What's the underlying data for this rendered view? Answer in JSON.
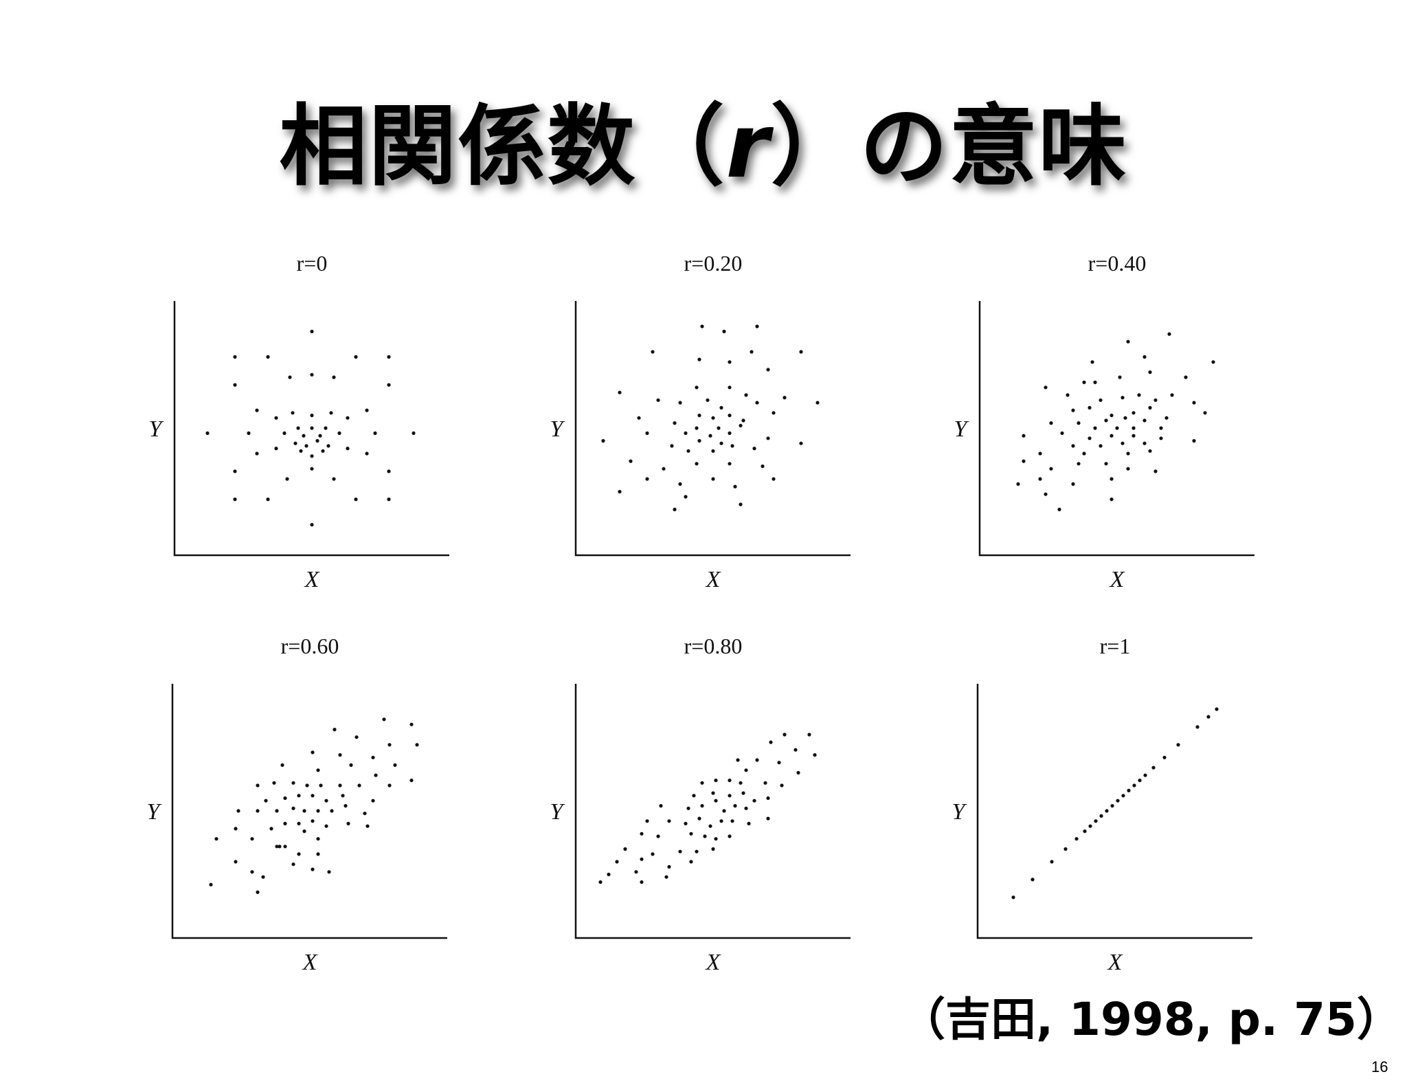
{
  "slide": {
    "title_prefix": "相関係数（",
    "title_symbol": "r",
    "title_suffix": "）の意味",
    "citation": "（吉田, 1998, p. 75）",
    "page_number": "16"
  },
  "chart_data": [
    {
      "type": "scatter",
      "title": "r=0",
      "xlabel": "X",
      "ylabel": "Y",
      "xlim": [
        0,
        10
      ],
      "ylim": [
        0,
        10
      ],
      "grid": false,
      "points": [
        [
          5,
          8.8
        ],
        [
          2.2,
          7.8
        ],
        [
          3.4,
          7.8
        ],
        [
          6.6,
          7.8
        ],
        [
          7.8,
          7.8
        ],
        [
          2.2,
          6.7
        ],
        [
          4.2,
          7.0
        ],
        [
          5,
          7.1
        ],
        [
          5.8,
          7.0
        ],
        [
          7.8,
          6.7
        ],
        [
          3,
          5.7
        ],
        [
          3.7,
          5.4
        ],
        [
          4.3,
          5.6
        ],
        [
          5,
          5.5
        ],
        [
          5.7,
          5.6
        ],
        [
          6.3,
          5.4
        ],
        [
          7,
          5.7
        ],
        [
          1.2,
          4.8
        ],
        [
          2.7,
          4.8
        ],
        [
          4,
          4.8
        ],
        [
          4.5,
          5.0
        ],
        [
          4.7,
          4.7
        ],
        [
          5,
          5.0
        ],
        [
          5.3,
          4.7
        ],
        [
          5.5,
          5.0
        ],
        [
          6,
          4.8
        ],
        [
          7.3,
          4.8
        ],
        [
          8.7,
          4.8
        ],
        [
          4.4,
          4.4
        ],
        [
          4.8,
          4.3
        ],
        [
          5.2,
          4.5
        ],
        [
          5.6,
          4.3
        ],
        [
          4.6,
          4.1
        ],
        [
          5.4,
          4.1
        ],
        [
          3,
          4.0
        ],
        [
          3.7,
          4.2
        ],
        [
          6.3,
          4.2
        ],
        [
          7,
          4.0
        ],
        [
          5,
          3.9
        ],
        [
          2.2,
          3.3
        ],
        [
          4.1,
          3.0
        ],
        [
          5,
          3.4
        ],
        [
          5.8,
          3.0
        ],
        [
          7.8,
          3.3
        ],
        [
          2.2,
          2.2
        ],
        [
          3.4,
          2.2
        ],
        [
          6.6,
          2.2
        ],
        [
          7.8,
          2.2
        ],
        [
          5,
          1.2
        ]
      ]
    },
    {
      "type": "scatter",
      "title": "r=0.20",
      "xlabel": "X",
      "ylabel": "Y",
      "xlim": [
        0,
        10
      ],
      "ylim": [
        0,
        10
      ],
      "grid": false,
      "points": [
        [
          4.6,
          9.0
        ],
        [
          5.4,
          8.8
        ],
        [
          6.6,
          9.0
        ],
        [
          2.8,
          8.0
        ],
        [
          4.5,
          7.7
        ],
        [
          5.6,
          7.6
        ],
        [
          6.4,
          8.0
        ],
        [
          8.2,
          8.0
        ],
        [
          7.0,
          7.3
        ],
        [
          1.6,
          6.4
        ],
        [
          3.0,
          6.1
        ],
        [
          4.4,
          6.6
        ],
        [
          5.6,
          6.6
        ],
        [
          6.2,
          6.3
        ],
        [
          7.6,
          6.2
        ],
        [
          8.8,
          6.0
        ],
        [
          3.8,
          6.0
        ],
        [
          4.8,
          6.1
        ],
        [
          5.3,
          5.8
        ],
        [
          6.6,
          6.0
        ],
        [
          2.3,
          5.4
        ],
        [
          3.6,
          5.2
        ],
        [
          4.5,
          5.5
        ],
        [
          5.0,
          5.4
        ],
        [
          5.6,
          5.5
        ],
        [
          6.1,
          5.3
        ],
        [
          7.2,
          5.6
        ],
        [
          1.0,
          4.5
        ],
        [
          2.6,
          4.8
        ],
        [
          4.0,
          4.8
        ],
        [
          4.4,
          5.0
        ],
        [
          4.9,
          4.7
        ],
        [
          5.2,
          5.0
        ],
        [
          5.6,
          4.8
        ],
        [
          6.0,
          5.1
        ],
        [
          8.2,
          4.4
        ],
        [
          4.5,
          4.5
        ],
        [
          5.3,
          4.4
        ],
        [
          5.7,
          4.3
        ],
        [
          7.0,
          4.6
        ],
        [
          3.5,
          4.3
        ],
        [
          4.1,
          4.1
        ],
        [
          5.0,
          4.1
        ],
        [
          6.5,
          4.2
        ],
        [
          2.0,
          3.7
        ],
        [
          3.2,
          3.4
        ],
        [
          4.4,
          3.6
        ],
        [
          5.6,
          3.6
        ],
        [
          6.8,
          3.5
        ],
        [
          2.6,
          3.0
        ],
        [
          3.8,
          2.8
        ],
        [
          5.0,
          3.0
        ],
        [
          5.8,
          2.7
        ],
        [
          7.2,
          3.0
        ],
        [
          1.6,
          2.5
        ],
        [
          4.0,
          2.3
        ],
        [
          6.0,
          2.0
        ],
        [
          3.6,
          1.8
        ]
      ]
    },
    {
      "type": "scatter",
      "title": "r=0.40",
      "xlabel": "X",
      "ylabel": "Y",
      "xlim": [
        0,
        10
      ],
      "ylim": [
        0,
        10
      ],
      "grid": false,
      "points": [
        [
          5.4,
          8.4
        ],
        [
          6.9,
          8.7
        ],
        [
          6.0,
          7.8
        ],
        [
          4.1,
          7.6
        ],
        [
          8.5,
          7.6
        ],
        [
          6.2,
          7.2
        ],
        [
          7.5,
          7.0
        ],
        [
          3.8,
          6.8
        ],
        [
          5.1,
          7.0
        ],
        [
          4.2,
          6.8
        ],
        [
          2.4,
          6.6
        ],
        [
          3.2,
          6.3
        ],
        [
          4.4,
          6.1
        ],
        [
          5.2,
          6.2
        ],
        [
          5.8,
          6.3
        ],
        [
          6.4,
          6.1
        ],
        [
          7.0,
          6.3
        ],
        [
          7.8,
          6.0
        ],
        [
          3.4,
          5.7
        ],
        [
          4.0,
          5.8
        ],
        [
          4.8,
          5.5
        ],
        [
          5.6,
          5.6
        ],
        [
          6.2,
          5.8
        ],
        [
          6.8,
          5.4
        ],
        [
          8.2,
          5.6
        ],
        [
          2.6,
          5.2
        ],
        [
          3.6,
          5.2
        ],
        [
          4.2,
          5.0
        ],
        [
          4.6,
          5.3
        ],
        [
          5.0,
          5.0
        ],
        [
          5.3,
          5.4
        ],
        [
          5.6,
          5.0
        ],
        [
          6.0,
          5.3
        ],
        [
          6.6,
          5.0
        ],
        [
          1.6,
          4.7
        ],
        [
          3.0,
          4.8
        ],
        [
          4.0,
          4.6
        ],
        [
          4.4,
          4.3
        ],
        [
          4.8,
          4.7
        ],
        [
          5.2,
          4.4
        ],
        [
          5.6,
          4.7
        ],
        [
          6.0,
          4.4
        ],
        [
          6.6,
          4.6
        ],
        [
          7.8,
          4.5
        ],
        [
          3.4,
          4.3
        ],
        [
          3.8,
          4.0
        ],
        [
          5.4,
          4.0
        ],
        [
          6.2,
          4.1
        ],
        [
          2.2,
          4.0
        ],
        [
          1.6,
          3.7
        ],
        [
          2.6,
          3.4
        ],
        [
          3.6,
          3.6
        ],
        [
          4.6,
          3.6
        ],
        [
          5.4,
          3.4
        ],
        [
          6.4,
          3.3
        ],
        [
          2.2,
          3.0
        ],
        [
          3.4,
          2.8
        ],
        [
          4.8,
          3.0
        ],
        [
          1.4,
          2.8
        ],
        [
          2.4,
          2.4
        ],
        [
          4.8,
          2.2
        ],
        [
          2.9,
          1.8
        ]
      ]
    },
    {
      "type": "scatter",
      "title": "r=0.60",
      "xlabel": "X",
      "ylabel": "Y",
      "xlim": [
        0,
        10
      ],
      "ylim": [
        0,
        10
      ],
      "grid": false,
      "points": [
        [
          7.7,
          8.6
        ],
        [
          8.7,
          8.4
        ],
        [
          5.9,
          8.2
        ],
        [
          6.7,
          7.9
        ],
        [
          7.9,
          7.6
        ],
        [
          8.9,
          7.6
        ],
        [
          5.1,
          7.3
        ],
        [
          6.1,
          7.2
        ],
        [
          7.3,
          7.1
        ],
        [
          8.1,
          6.8
        ],
        [
          4.0,
          6.8
        ],
        [
          5.3,
          6.6
        ],
        [
          6.5,
          6.8
        ],
        [
          7.4,
          6.4
        ],
        [
          8.7,
          6.2
        ],
        [
          3.1,
          6.0
        ],
        [
          3.7,
          6.1
        ],
        [
          4.4,
          6.1
        ],
        [
          4.9,
          6.0
        ],
        [
          5.4,
          6.0
        ],
        [
          6.1,
          6.0
        ],
        [
          6.8,
          6.0
        ],
        [
          7.9,
          6.0
        ],
        [
          3.4,
          5.4
        ],
        [
          4.1,
          5.5
        ],
        [
          4.6,
          5.6
        ],
        [
          5.1,
          5.6
        ],
        [
          5.6,
          5.4
        ],
        [
          6.2,
          5.6
        ],
        [
          7.3,
          5.4
        ],
        [
          2.4,
          5.0
        ],
        [
          3.1,
          5.0
        ],
        [
          3.8,
          5.0
        ],
        [
          4.4,
          5.1
        ],
        [
          4.8,
          5.0
        ],
        [
          5.3,
          5.0
        ],
        [
          5.8,
          5.0
        ],
        [
          6.3,
          5.2
        ],
        [
          7.0,
          4.9
        ],
        [
          4.1,
          4.5
        ],
        [
          4.6,
          4.5
        ],
        [
          5.1,
          4.6
        ],
        [
          5.6,
          4.4
        ],
        [
          6.4,
          4.5
        ],
        [
          7.1,
          4.4
        ],
        [
          2.3,
          4.3
        ],
        [
          3.6,
          4.3
        ],
        [
          4.8,
          4.2
        ],
        [
          1.6,
          3.9
        ],
        [
          2.9,
          3.9
        ],
        [
          3.8,
          3.6
        ],
        [
          5.3,
          3.9
        ],
        [
          3.9,
          3.6
        ],
        [
          4.1,
          3.6
        ],
        [
          4.6,
          3.3
        ],
        [
          5.3,
          3.3
        ],
        [
          2.3,
          3.0
        ],
        [
          2.9,
          2.6
        ],
        [
          4.4,
          2.9
        ],
        [
          5.1,
          2.7
        ],
        [
          3.3,
          2.4
        ],
        [
          5.7,
          2.6
        ],
        [
          1.4,
          2.1
        ],
        [
          3.1,
          1.8
        ]
      ]
    },
    {
      "type": "scatter",
      "title": "r=0.80",
      "xlabel": "X",
      "ylabel": "Y",
      "xlim": [
        0,
        10
      ],
      "ylim": [
        0,
        10
      ],
      "grid": false,
      "points": [
        [
          7.6,
          8.0
        ],
        [
          8.5,
          8.0
        ],
        [
          7.1,
          7.7
        ],
        [
          8.0,
          7.4
        ],
        [
          8.7,
          7.2
        ],
        [
          5.9,
          7.0
        ],
        [
          6.6,
          7.0
        ],
        [
          7.4,
          6.9
        ],
        [
          6.2,
          6.6
        ],
        [
          8.1,
          6.5
        ],
        [
          4.6,
          6.1
        ],
        [
          5.1,
          6.2
        ],
        [
          5.6,
          6.2
        ],
        [
          6.0,
          6.1
        ],
        [
          6.9,
          6.1
        ],
        [
          7.5,
          6.0
        ],
        [
          4.3,
          5.6
        ],
        [
          5.0,
          5.7
        ],
        [
          5.6,
          5.6
        ],
        [
          6.1,
          5.7
        ],
        [
          6.5,
          5.4
        ],
        [
          7.0,
          5.5
        ],
        [
          3.1,
          5.2
        ],
        [
          4.1,
          5.1
        ],
        [
          4.6,
          5.2
        ],
        [
          5.1,
          5.4
        ],
        [
          5.4,
          5.0
        ],
        [
          5.8,
          5.2
        ],
        [
          6.2,
          5.1
        ],
        [
          2.6,
          4.6
        ],
        [
          3.4,
          4.6
        ],
        [
          4.0,
          4.5
        ],
        [
          4.5,
          4.7
        ],
        [
          4.9,
          4.4
        ],
        [
          5.3,
          4.6
        ],
        [
          5.7,
          4.6
        ],
        [
          6.3,
          4.5
        ],
        [
          7.0,
          4.7
        ],
        [
          2.4,
          4.1
        ],
        [
          3.0,
          4.0
        ],
        [
          4.2,
          4.1
        ],
        [
          4.7,
          4.0
        ],
        [
          5.1,
          3.9
        ],
        [
          5.6,
          4.0
        ],
        [
          1.8,
          3.5
        ],
        [
          2.8,
          3.3
        ],
        [
          3.8,
          3.4
        ],
        [
          4.4,
          3.4
        ],
        [
          5.0,
          3.5
        ],
        [
          1.5,
          3.0
        ],
        [
          2.4,
          3.1
        ],
        [
          3.4,
          2.8
        ],
        [
          4.2,
          3.0
        ],
        [
          1.2,
          2.5
        ],
        [
          2.2,
          2.6
        ],
        [
          3.3,
          2.4
        ],
        [
          0.9,
          2.2
        ],
        [
          2.4,
          2.2
        ]
      ]
    },
    {
      "type": "scatter",
      "title": "r=1",
      "xlabel": "X",
      "ylabel": "Y",
      "xlim": [
        0,
        10
      ],
      "ylim": [
        0,
        10
      ],
      "grid": false,
      "points": [
        [
          1.3,
          1.6
        ],
        [
          2.0,
          2.3
        ],
        [
          2.7,
          3.0
        ],
        [
          3.2,
          3.5
        ],
        [
          3.6,
          3.9
        ],
        [
          3.9,
          4.2
        ],
        [
          4.1,
          4.4
        ],
        [
          4.3,
          4.6
        ],
        [
          4.5,
          4.8
        ],
        [
          4.7,
          5.0
        ],
        [
          4.9,
          5.2
        ],
        [
          5.1,
          5.4
        ],
        [
          5.3,
          5.6
        ],
        [
          5.5,
          5.8
        ],
        [
          5.7,
          6.0
        ],
        [
          5.9,
          6.2
        ],
        [
          6.1,
          6.4
        ],
        [
          6.4,
          6.7
        ],
        [
          6.8,
          7.1
        ],
        [
          7.3,
          7.6
        ],
        [
          8.0,
          8.3
        ],
        [
          8.4,
          8.7
        ],
        [
          8.7,
          9.0
        ]
      ]
    }
  ]
}
